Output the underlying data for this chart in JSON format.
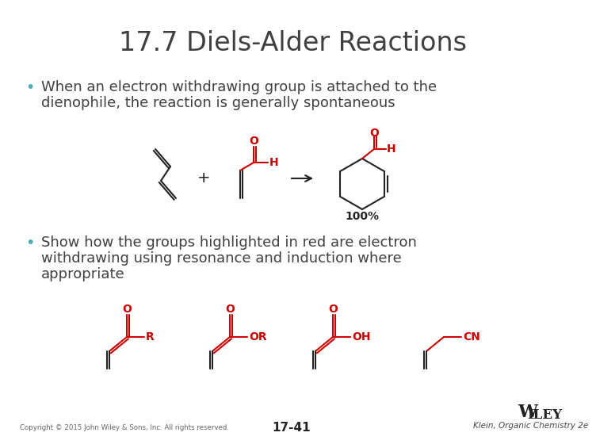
{
  "title": "17.7 Diels-Alder Reactions",
  "title_color": "#404040",
  "title_fontsize": 24,
  "bg_color": "#ffffff",
  "bullet_color": "#4AABBA",
  "bullet1_line1": "When an electron withdrawing group is attached to the",
  "bullet1_line2": "dienophile, the reaction is generally spontaneous",
  "bullet2_line1": "Show how the groups highlighted in red are electron",
  "bullet2_line2": "withdrawing using resonance and induction where",
  "bullet2_line3": "appropriate",
  "text_color": "#404040",
  "red_color": "#cc0000",
  "black_color": "#222222",
  "footer_copyright": "Copyright © 2015 John Wiley & Sons, Inc. All rights reserved.",
  "footer_page": "17-41",
  "footer_publisher": "Klein, Organic Chemistry 2e",
  "footer_wiley": "WILEY",
  "pct_label": "100%"
}
